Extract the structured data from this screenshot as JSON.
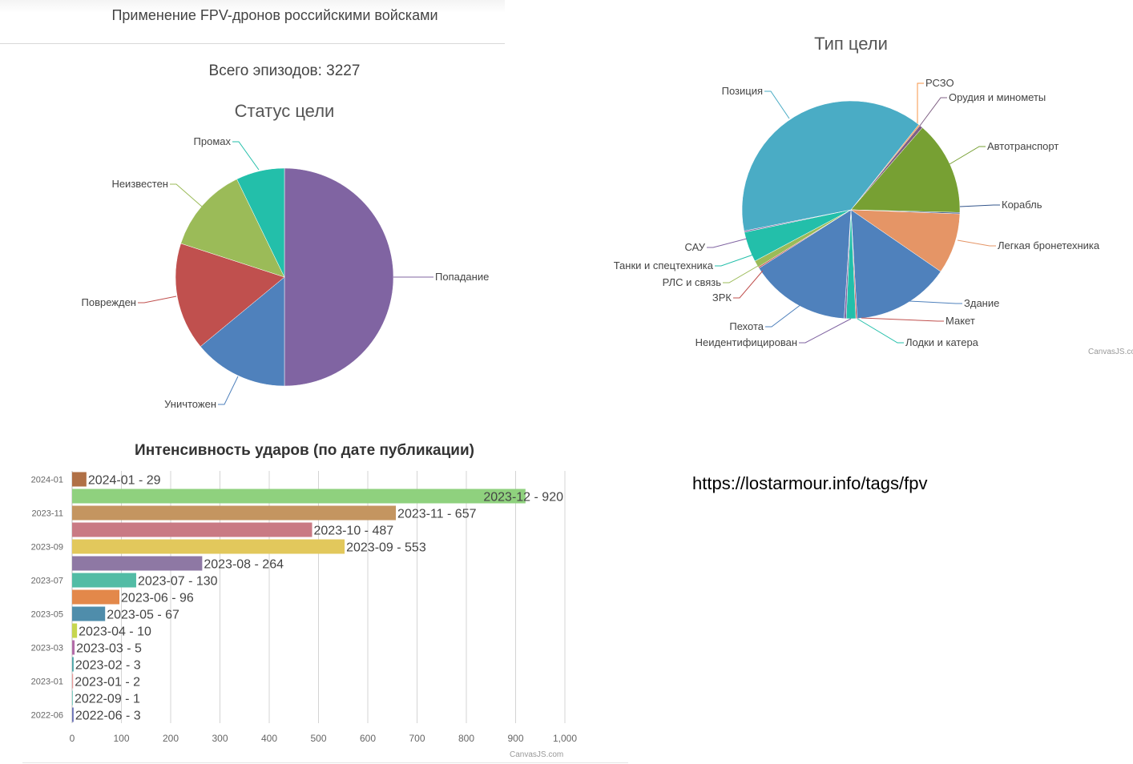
{
  "header": {
    "title": "Применение FPV-дронов российскими войсками"
  },
  "total_label": "Всего эпизодов: 3227",
  "source_url": "https://lostarmour.info/tags/fpv",
  "watermark": "CanvasJS.com",
  "chart_data": [
    {
      "type": "pie",
      "title": "Статус цели",
      "unit_note": "estimated percent of total",
      "slices": [
        {
          "label": "Попадание",
          "value": 50,
          "color": "#8064a2"
        },
        {
          "label": "Уничтожен",
          "value": 14,
          "color": "#4f81bc"
        },
        {
          "label": "Поврежден",
          "value": 16,
          "color": "#c0504e"
        },
        {
          "label": "Неизвестен",
          "value": 12.8,
          "color": "#9bbb58"
        },
        {
          "label": "Промах",
          "value": 7.2,
          "color": "#23bfaa"
        }
      ]
    },
    {
      "type": "pie",
      "title": "Тип цели",
      "slices": [
        {
          "label": "РСЗО",
          "value": 0.2,
          "color": "#f79647"
        },
        {
          "label": "Орудия и минометы",
          "value": 0.5,
          "color": "#7f6084"
        },
        {
          "label": "Автотранспорт",
          "value": 14,
          "color": "#77a033"
        },
        {
          "label": "Корабль",
          "value": 0.2,
          "color": "#33558b"
        },
        {
          "label": "Легкая бронетехника",
          "value": 9,
          "color": "#e59566"
        },
        {
          "label": "Здание",
          "value": 14.5,
          "color": "#4f81bc"
        },
        {
          "label": "Макет",
          "value": 0.2,
          "color": "#c0504e"
        },
        {
          "label": "Лодки и катера",
          "value": 1.4,
          "color": "#23bfaa"
        },
        {
          "label": "Неидентифицирован",
          "value": 0.3,
          "color": "#8064a2"
        },
        {
          "label": "Пехота",
          "value": 15,
          "color": "#4f81bc"
        },
        {
          "label": "ЗРК",
          "value": 0.2,
          "color": "#c0504e"
        },
        {
          "label": "РЛС и связь",
          "value": 1,
          "color": "#9bbb58"
        },
        {
          "label": "Танки и спецтехника",
          "value": 4.5,
          "color": "#23bfaa"
        },
        {
          "label": "САУ",
          "value": 0.2,
          "color": "#8064a2"
        },
        {
          "label": "Позиция",
          "value": 38.8,
          "color": "#4aacc5"
        }
      ]
    },
    {
      "type": "bar",
      "orientation": "horizontal",
      "title": "Интенсивность ударов (по дате публикации)",
      "categories": [
        "2024-01",
        "2023-12",
        "2023-11",
        "2023-10",
        "2023-09",
        "2023-08",
        "2023-07",
        "2023-06",
        "2023-05",
        "2023-04",
        "2023-03",
        "2023-02",
        "2023-01",
        "2022-09",
        "2022-06"
      ],
      "values": [
        29,
        920,
        657,
        487,
        553,
        264,
        130,
        96,
        67,
        10,
        5,
        3,
        2,
        1,
        3
      ],
      "colors": [
        "#b07046",
        "#8fd17e",
        "#c49560",
        "#c97a84",
        "#e2c85c",
        "#8e78a4",
        "#52bca5",
        "#e3884a",
        "#4f8dab",
        "#c6d64f",
        "#b36ca8",
        "#4ca6a8",
        "#e89a9a",
        "#7fd0c4",
        "#6b72b8"
      ],
      "y_tick_labels": [
        "2024-01",
        "2023-11",
        "2023-09",
        "2023-07",
        "2023-05",
        "2023-03",
        "2023-01",
        "2022-06"
      ],
      "x_tick_labels": [
        "0",
        "100",
        "200",
        "300",
        "400",
        "500",
        "600",
        "700",
        "800",
        "900",
        "1,000"
      ],
      "xlim": [
        0,
        1000
      ],
      "grid": true
    }
  ]
}
